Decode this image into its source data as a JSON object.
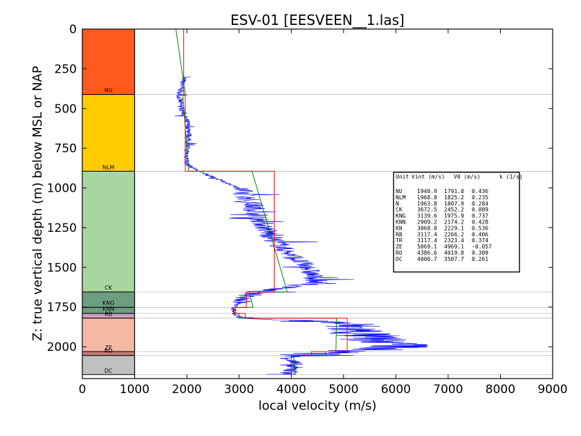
{
  "chart_data": {
    "type": "line",
    "title": "ESV-01 [EESVEEN__1.las]",
    "xlabel": "local velocity (m/s)",
    "ylabel": "Z: true vertical depth (m) below MSL or NAP",
    "xlim": [
      0,
      9000
    ],
    "ylim": [
      2200,
      0
    ],
    "x_ticks": [
      0,
      1000,
      2000,
      3000,
      4000,
      5000,
      6000,
      7000,
      8000,
      9000
    ],
    "y_ticks": [
      0,
      250,
      500,
      750,
      1000,
      1250,
      1500,
      1750,
      2000
    ],
    "units": [
      {
        "name": "NU",
        "top": 0,
        "base": 412,
        "color": "#ff5a1e",
        "vint": 1940.9,
        "v0": 1791.0,
        "k": 0.436
      },
      {
        "name": "NLM",
        "top": 412,
        "base": 895,
        "color": "#ffcc00",
        "vint": 1968.8,
        "v0": 1825.2,
        "k": 0.235
      },
      {
        "name": "N",
        "top": 0,
        "base": 0,
        "color": "#ffffff",
        "vint": 1963.8,
        "v0": 1807.9,
        "k": 0.284
      },
      {
        "name": "CK",
        "top": 895,
        "base": 1655,
        "color": "#a8d5a0",
        "vint": 3672.5,
        "v0": 2452.2,
        "k": 0.889
      },
      {
        "name": "KNG",
        "top": 1655,
        "base": 1752,
        "color": "#6e9e80",
        "vint": 3139.6,
        "v0": 1975.9,
        "k": 0.737
      },
      {
        "name": "KNN",
        "top": 1752,
        "base": 1790,
        "color": "#6e9e80",
        "vint": 2909.2,
        "v0": 2174.2,
        "k": 0.428
      },
      {
        "name": "KN",
        "top": 1790,
        "base": 1790,
        "color": "#6e9e80",
        "vint": 3068.0,
        "v0": 2229.1,
        "k": 0.536
      },
      {
        "name": "RB",
        "top": 1790,
        "base": 1820,
        "color": "#c8a0c0",
        "vint": 3117.4,
        "v0": 2266.2,
        "k": 0.406
      },
      {
        "name": "TR",
        "top": 1820,
        "base": 1820,
        "color": "#e8b0a0",
        "vint": 3117.4,
        "v0": 2323.4,
        "k": 0.374
      },
      {
        "name": "ZE",
        "top": 1820,
        "base": 2030,
        "color": "#f5b8a5",
        "vint": 5069.1,
        "v0": 4969.1,
        "k": -0.057
      },
      {
        "name": "RO",
        "top": 2030,
        "base": 2055,
        "color": "#c87878",
        "vint": 4386.6,
        "v0": 4019.8,
        "k": 0.309
      },
      {
        "name": "DC",
        "top": 2055,
        "base": 2175,
        "color": "#c0c0c0",
        "vint": 4000.7,
        "v0": 3507.7,
        "k": 0.261
      }
    ],
    "column_labels": [
      {
        "name": "NU",
        "depth": 397
      },
      {
        "name": "NLM",
        "depth": 882
      },
      {
        "name": "CK",
        "depth": 1641
      },
      {
        "name": "KNG",
        "depth": 1735
      },
      {
        "name": "KNN",
        "depth": 1773
      },
      {
        "name": "RB",
        "depth": 1805
      },
      {
        "name": "ZE",
        "depth": 2017
      },
      {
        "name": "RO",
        "depth": 2037
      },
      {
        "name": "DC",
        "depth": 2163
      }
    ],
    "horizontal_lines": [
      412,
      895,
      1655,
      1752,
      1790,
      1820,
      2030,
      2055,
      2175
    ],
    "interval_velocity_red": [
      {
        "top": 0,
        "base": 412,
        "v": 1940.9
      },
      {
        "top": 412,
        "base": 895,
        "v": 1968.8
      },
      {
        "top": 895,
        "base": 1655,
        "v": 3672.5
      },
      {
        "top": 1655,
        "base": 1752,
        "v": 3139.6
      },
      {
        "top": 1752,
        "base": 1790,
        "v": 2909.2
      },
      {
        "top": 1790,
        "base": 1820,
        "v": 3117.4
      },
      {
        "top": 1820,
        "base": 2030,
        "v": 5069.1
      },
      {
        "top": 2030,
        "base": 2055,
        "v": 4386.6
      },
      {
        "top": 2055,
        "base": 2175,
        "v": 4000.7
      }
    ],
    "v0k_green": [
      {
        "top": 0,
        "base": 412,
        "v0": 1791.0,
        "k": 0.436
      },
      {
        "top": 412,
        "base": 895,
        "v0": 1825.2,
        "k": 0.235
      },
      {
        "top": 895,
        "base": 1655,
        "v0": 2452.2,
        "k": 0.889
      },
      {
        "top": 1655,
        "base": 1752,
        "v0": 1975.9,
        "k": 0.737
      },
      {
        "top": 1752,
        "base": 1790,
        "v0": 2174.2,
        "k": 0.428
      },
      {
        "top": 1790,
        "base": 1820,
        "v0": 2266.2,
        "k": 0.406
      },
      {
        "top": 1820,
        "base": 2030,
        "v0": 4969.1,
        "k": -0.057
      },
      {
        "top": 2030,
        "base": 2055,
        "v0": 4019.8,
        "k": 0.309
      },
      {
        "top": 2055,
        "base": 2175,
        "v0": 3507.7,
        "k": 0.261
      }
    ],
    "log_velocity_blue": {
      "depth_range": [
        300,
        2175
      ],
      "trend": [
        [
          300,
          1950
        ],
        [
          420,
          1850
        ],
        [
          500,
          1900
        ],
        [
          580,
          2000
        ],
        [
          650,
          2050
        ],
        [
          760,
          2000
        ],
        [
          850,
          2000
        ],
        [
          900,
          2250
        ],
        [
          1000,
          3000
        ],
        [
          1100,
          3250
        ],
        [
          1200,
          3400
        ],
        [
          1300,
          3600
        ],
        [
          1400,
          3900
        ],
        [
          1500,
          4300
        ],
        [
          1600,
          4500
        ],
        [
          1655,
          3300
        ],
        [
          1700,
          3100
        ],
        [
          1750,
          2900
        ],
        [
          1800,
          2900
        ],
        [
          1820,
          3100
        ],
        [
          1850,
          5000
        ],
        [
          1950,
          5500
        ],
        [
          2000,
          6200
        ],
        [
          2030,
          5000
        ],
        [
          2060,
          4000
        ],
        [
          2100,
          4000
        ],
        [
          2175,
          4000
        ]
      ]
    },
    "table": {
      "headers": [
        "Unit",
        "Vint (m/s)",
        "V0 (m/s)",
        "k (1/s)"
      ]
    },
    "grid": false,
    "colors": {
      "interval": "#ff0000",
      "v0k": "#008000",
      "log": "#0000ff"
    }
  }
}
